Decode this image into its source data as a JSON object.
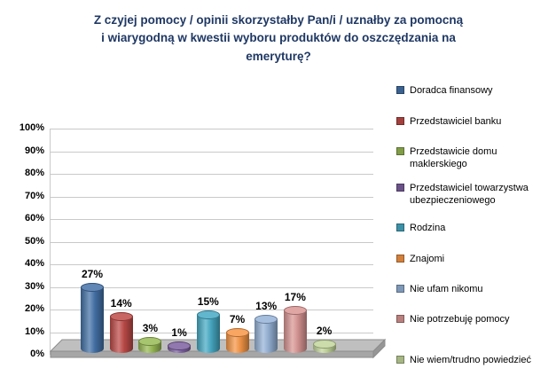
{
  "title_lines": [
    "Z czyjej pomocy / opinii skorzystałby Pan/i / uznałby za pomocną",
    "i wiarygodną w kwestii wyboru produktów do oszczędzania na",
    "emeryturę?"
  ],
  "colors": {
    "title": "#1F3864",
    "axis_labels": "#000000",
    "value_labels": "#000000"
  },
  "chart_data": {
    "type": "bar",
    "subtype": "3d-cylinder",
    "title": "Z czyjej pomocy / opinii skorzystałby Pan/i / uznałby za pomocną i wiarygodną w kwestii wyboru produktów do oszczędzania na emeryturę?",
    "categories": [
      "Doradca finansowy",
      "Przedstawiciel banku",
      "Przedstawicie domu maklerskiego",
      "Przedstawiciel towarzystwa ubezpieczeniowego",
      "Rodzina",
      "Znajomi",
      "Nie ufam nikomu",
      "Nie potrzebuję pomocy",
      "Nie wiem/trudno powiedzieć"
    ],
    "values": [
      27,
      14,
      3,
      1,
      15,
      7,
      13,
      17,
      2
    ],
    "labels": [
      "27%",
      "14%",
      "3%",
      "1%",
      "15%",
      "7%",
      "13%",
      "17%",
      "2%"
    ],
    "colors": [
      "#4472A8",
      "#BE4B48",
      "#98B954",
      "#7D60A0",
      "#46AAC5",
      "#F79646",
      "#95B3D7",
      "#D99694",
      "#C3D69B"
    ],
    "xlabel": "",
    "ylabel": "",
    "ylim": [
      0,
      100
    ],
    "ytick_step": 10,
    "ytick_labels": [
      "0%",
      "10%",
      "20%",
      "30%",
      "40%",
      "50%",
      "60%",
      "70%",
      "80%",
      "90%",
      "100%"
    ],
    "grid": true,
    "legend_position": "right"
  }
}
